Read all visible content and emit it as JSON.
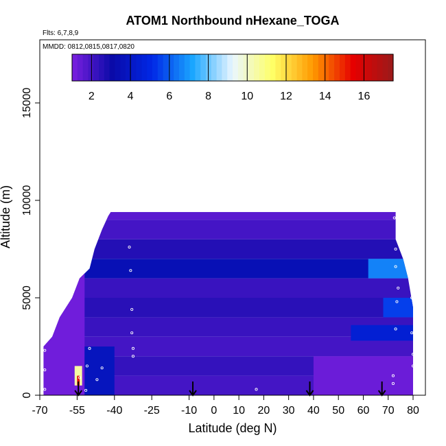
{
  "chart_data": {
    "type": "heatmap",
    "title": "ATOM1 Northbound nHexane_TOGA",
    "subtitle_flights": "Flts: 6,7,8,9",
    "subtitle_dates": "MMDD: 0812,0815,0817,0820",
    "xlabel": "Latitude (deg N)",
    "ylabel": "Altitude (m)",
    "xlim": [
      -70,
      80
    ],
    "ylim": [
      0,
      17500
    ],
    "x_ticks": [
      -70,
      -55,
      -40,
      -25,
      -10,
      0,
      10,
      20,
      30,
      40,
      50,
      60,
      70,
      80
    ],
    "y_ticks": [
      0,
      5000,
      10000,
      15000
    ],
    "colorbar": {
      "range": [
        1,
        17.5
      ],
      "ticks": [
        2,
        4,
        6,
        8,
        10,
        12,
        14,
        16
      ],
      "colors": [
        "#7b1fe0",
        "#0a0aa8",
        "#0028e6",
        "#1aa6ff",
        "#eaf6ff",
        "#ffff66",
        "#ff9900",
        "#e60000",
        "#9a1a1a"
      ]
    },
    "outline": {
      "lat": [
        -68.5,
        -68.5,
        -65,
        -62,
        -57,
        -54,
        -50,
        -48,
        -45,
        -42.5,
        -40,
        -38,
        -37.5,
        -39,
        -39,
        73,
        73,
        76,
        78,
        80,
        80
      ],
      "alt": [
        0,
        2500,
        3000,
        4000,
        5000,
        6000,
        6500,
        7500,
        8500,
        9200,
        9700,
        10000,
        9600,
        9400,
        9400,
        9400,
        8000,
        7000,
        6000,
        4500,
        0
      ]
    },
    "bands": [
      {
        "alt": [
          9000,
          9400
        ],
        "value": 1.6
      },
      {
        "alt": [
          8000,
          9000
        ],
        "value": 2.0
      },
      {
        "alt": [
          7000,
          8000
        ],
        "value": 2.6
      },
      {
        "alt": [
          6000,
          7000
        ],
        "value": 3.5
      },
      {
        "alt": [
          5000,
          6000
        ],
        "value": 2.2
      },
      {
        "alt": [
          4000,
          5000
        ],
        "value": 2.5
      },
      {
        "alt": [
          3000,
          4000
        ],
        "value": 2.2
      },
      {
        "alt": [
          2000,
          3000
        ],
        "value": 2.0
      },
      {
        "alt": [
          1000,
          2000
        ],
        "value": 2.3
      },
      {
        "alt": [
          0,
          1000
        ],
        "value": 2.0
      }
    ],
    "features": [
      {
        "lat": [
          -68.5,
          -52
        ],
        "alt": [
          0,
          10000
        ],
        "value": 1.2
      },
      {
        "lat": [
          -52,
          -40
        ],
        "alt": [
          0,
          2500
        ],
        "value": 3.8
      },
      {
        "lat": [
          40,
          80
        ],
        "alt": [
          0,
          2000
        ],
        "value": 1.3
      },
      {
        "lat": [
          62,
          80
        ],
        "alt": [
          6000,
          7000
        ],
        "value": 6.6
      },
      {
        "lat": [
          68,
          80
        ],
        "alt": [
          4000,
          5000
        ],
        "value": 5.5
      },
      {
        "lat": [
          55,
          80
        ],
        "alt": [
          2800,
          3600
        ],
        "value": 4.5
      },
      {
        "lat": [
          -56,
          -53
        ],
        "alt": [
          500,
          1500
        ],
        "value": 10.5
      },
      {
        "lat": [
          -55,
          -54
        ],
        "alt": [
          500,
          1000
        ],
        "value": 15.5
      }
    ],
    "arrows": [
      -54.5,
      -8.5,
      38.5,
      67.5
    ],
    "sample_points": [
      {
        "lat": -68,
        "alt": 300
      },
      {
        "lat": -68,
        "alt": 1300
      },
      {
        "lat": -68,
        "alt": 2300
      },
      {
        "lat": -54,
        "alt": 900
      },
      {
        "lat": -51.5,
        "alt": 250
      },
      {
        "lat": -51,
        "alt": 1500
      },
      {
        "lat": -50,
        "alt": 2400
      },
      {
        "lat": -47,
        "alt": 800
      },
      {
        "lat": -45,
        "alt": 1400
      },
      {
        "lat": -39,
        "alt": 9600
      },
      {
        "lat": -34,
        "alt": 7600
      },
      {
        "lat": -33.5,
        "alt": 6400
      },
      {
        "lat": -33,
        "alt": 4400
      },
      {
        "lat": -33,
        "alt": 3200
      },
      {
        "lat": -32.5,
        "alt": 2400
      },
      {
        "lat": -32.5,
        "alt": 2000
      },
      {
        "lat": 17,
        "alt": 300
      },
      {
        "lat": 72,
        "alt": 1000
      },
      {
        "lat": 72,
        "alt": 600
      },
      {
        "lat": 72.5,
        "alt": 9100
      },
      {
        "lat": 73,
        "alt": 7500
      },
      {
        "lat": 73,
        "alt": 6600
      },
      {
        "lat": 74,
        "alt": 5500
      },
      {
        "lat": 73.5,
        "alt": 4800
      },
      {
        "lat": 73,
        "alt": 3400
      },
      {
        "lat": 79,
        "alt": 6100
      },
      {
        "lat": 79.5,
        "alt": 5000
      },
      {
        "lat": 79.5,
        "alt": 3200
      },
      {
        "lat": 80,
        "alt": 2100
      },
      {
        "lat": 80,
        "alt": 1500
      }
    ],
    "grid": false
  }
}
